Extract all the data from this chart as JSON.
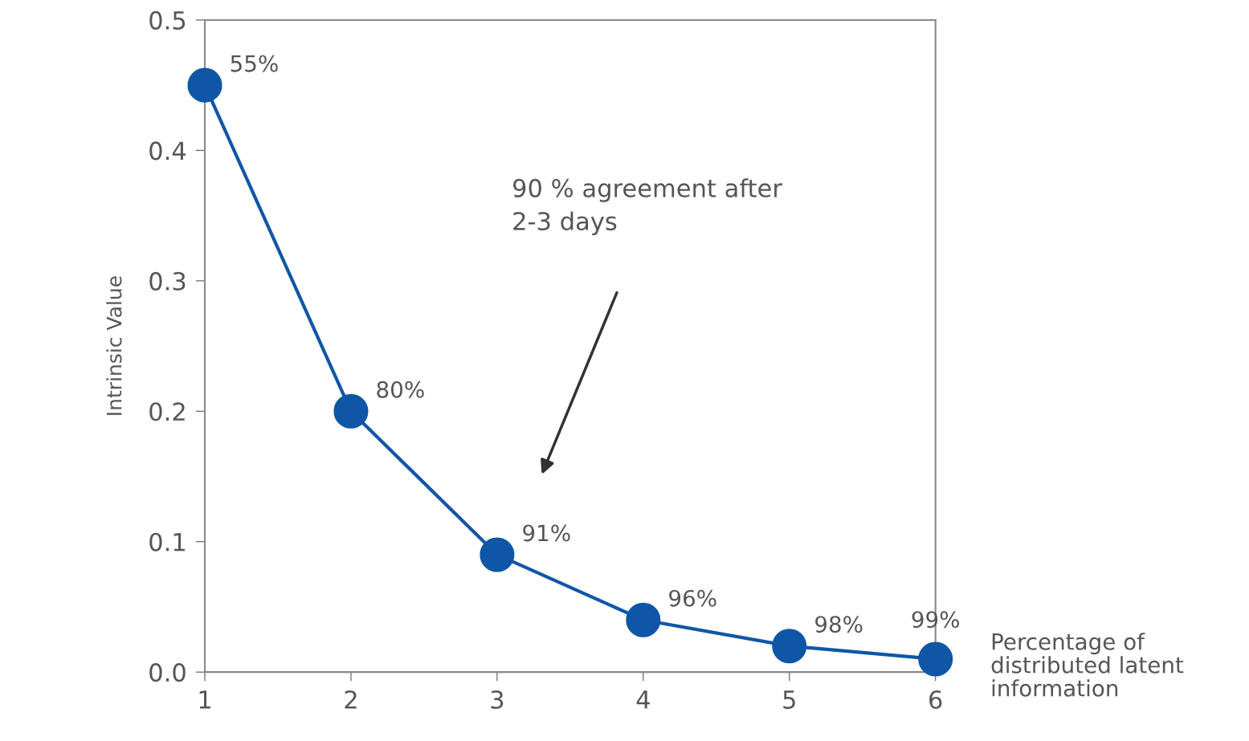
{
  "chart_data": {
    "type": "line",
    "xlabel": "Percentage of\ndistributed latent\ninformation",
    "ylabel": "Intrinsic Value",
    "x": [
      1,
      2,
      3,
      4,
      5,
      6
    ],
    "series": [
      {
        "color": "#0f56a6",
        "values": [
          0.45,
          0.2,
          0.09,
          0.04,
          0.02,
          0.01
        ]
      }
    ],
    "xlim": [
      1,
      6
    ],
    "ylim": [
      0,
      0.5
    ],
    "xticks": [
      1,
      2,
      3,
      4,
      5,
      6
    ],
    "yticks": [
      {
        "value": 0,
        "label": "0.0"
      },
      0.1,
      0.2,
      0.3,
      0.4,
      0.5
    ],
    "marker": "circle",
    "line_style": "solid",
    "grid": false,
    "legend": false,
    "annotations": [
      "90 % agreement after\n2-3 days",
      {
        "text": "55%",
        "x": 1,
        "y": 0.45
      },
      {
        "text": "80%",
        "x": 2,
        "y": 0.2
      },
      {
        "text": "91%",
        "x": 3,
        "y": 0.09
      },
      {
        "text": "96%",
        "x": 4,
        "y": 0.04
      },
      {
        "text": "98%",
        "x": 5,
        "y": 0.02
      },
      {
        "text": "99%",
        "x": 6,
        "y": 0.01
      }
    ]
  }
}
